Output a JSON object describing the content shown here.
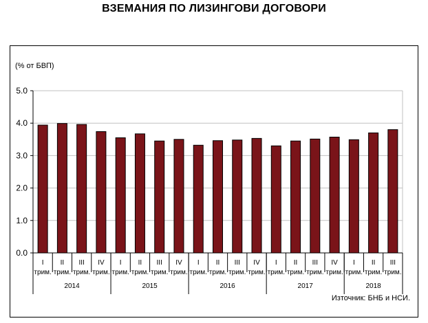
{
  "title": "ВЗЕМАНИЯ ПО ЛИЗИНГОВИ ДОГОВОРИ",
  "source": "Източник: БНБ и НСИ.",
  "chart_data": {
    "type": "bar",
    "ylabel": "(% от БВП)",
    "ylim": [
      0,
      5
    ],
    "yticks": [
      "0.0",
      "1.0",
      "2.0",
      "3.0",
      "4.0",
      "5.0"
    ],
    "grid": true,
    "bar_color": "#7a1419",
    "quarter_word": "трим.",
    "years": [
      {
        "label": "2014",
        "quarters": 4
      },
      {
        "label": "2015",
        "quarters": 4
      },
      {
        "label": "2016",
        "quarters": 4
      },
      {
        "label": "2017",
        "quarters": 4
      },
      {
        "label": "2018",
        "quarters": 3
      }
    ],
    "categories": [
      "I",
      "II",
      "III",
      "IV",
      "I",
      "II",
      "III",
      "IV",
      "I",
      "II",
      "III",
      "IV",
      "I",
      "II",
      "III",
      "IV",
      "I",
      "II",
      "III"
    ],
    "values": [
      3.94,
      3.99,
      3.96,
      3.74,
      3.55,
      3.67,
      3.45,
      3.5,
      3.32,
      3.46,
      3.48,
      3.53,
      3.3,
      3.45,
      3.51,
      3.57,
      3.49,
      3.7,
      3.8
    ]
  }
}
